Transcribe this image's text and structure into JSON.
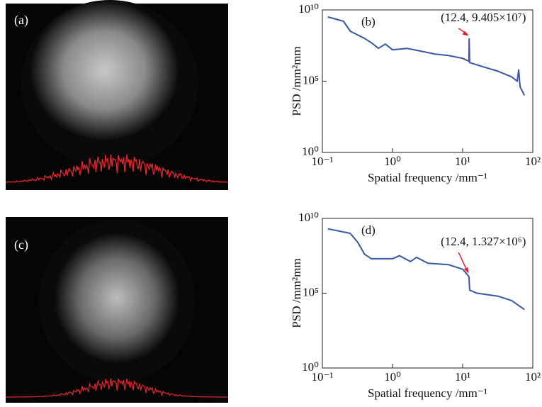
{
  "images": [
    {
      "label": "(a)"
    },
    {
      "label": "(c)"
    }
  ],
  "chart_data": [
    {
      "type": "line",
      "label": "(b)",
      "log_x": true,
      "log_y": true,
      "x_label": "Spatial frequency /mm⁻¹",
      "y_label": "PSD /mm²mm",
      "xlim": [
        0.1,
        100
      ],
      "ylim": [
        1,
        10000000000.0
      ],
      "xticks": [
        {
          "value": 0.1,
          "label": "10⁻¹"
        },
        {
          "value": 1,
          "label": "10⁰"
        },
        {
          "value": 10,
          "label": "10¹"
        },
        {
          "value": 100,
          "label": "10²"
        }
      ],
      "yticks": [
        {
          "value": 1,
          "label": "10⁰"
        },
        {
          "value": 100000,
          "label": "10⁵"
        },
        {
          "value": 10000000000,
          "label": "10¹⁰"
        }
      ],
      "color": "#3557a6",
      "x": [
        0.12,
        0.2,
        0.25,
        0.4,
        0.5,
        0.63,
        0.79,
        1,
        1.6,
        2.5,
        4,
        6.3,
        10,
        12.3,
        12.4,
        12.6,
        20,
        32,
        50,
        60,
        63,
        66,
        76
      ],
      "values": [
        3200000000.0,
        1600000000.0,
        320000000.0,
        100000000.0,
        50000000.0,
        20000000.0,
        40000000.0,
        16000000.0,
        20000000.0,
        13000000.0,
        8000000.0,
        6300000.0,
        4000000.0,
        2500000.0,
        94050000.0,
        2000000.0,
        1000000.0,
        500000.0,
        200000.0,
        100000.0,
        630000.0,
        40000.0,
        10000.0
      ],
      "annotation": {
        "text": "(12.4, 9.405×10⁷)",
        "x": 12.4,
        "y": 94050000.0,
        "color": "#e8202a"
      }
    },
    {
      "type": "line",
      "label": "(d)",
      "log_x": true,
      "log_y": true,
      "x_label": "Spatial frequency /mm⁻¹",
      "y_label": "PSD /mm²mm",
      "xlim": [
        0.1,
        100
      ],
      "ylim": [
        1,
        10000000000.0
      ],
      "xticks": [
        {
          "value": 0.1,
          "label": "10⁻¹"
        },
        {
          "value": 1,
          "label": "10⁰"
        },
        {
          "value": 10,
          "label": "10¹"
        },
        {
          "value": 100,
          "label": "10²"
        }
      ],
      "yticks": [
        {
          "value": 1,
          "label": "10⁰"
        },
        {
          "value": 100000,
          "label": "10⁵"
        },
        {
          "value": 10000000000,
          "label": "10¹⁰"
        }
      ],
      "color": "#3557a6",
      "x": [
        0.12,
        0.25,
        0.32,
        0.4,
        0.5,
        1,
        1.26,
        1.8,
        2.2,
        3.2,
        6.3,
        10,
        12.3,
        12.6,
        16,
        32,
        50,
        76
      ],
      "values": [
        2000000000.0,
        1000000000.0,
        250000000.0,
        40000000.0,
        20000000.0,
        20000000.0,
        32000000.0,
        13000000.0,
        25000000.0,
        10000000.0,
        8000000.0,
        4000000.0,
        1300000.0,
        160000.0,
        100000.0,
        63000.0,
        32000.0,
        8000.0
      ],
      "annotation": {
        "text": "(12.4, 1.327×10⁶)",
        "x": 12.4,
        "y": 1327000.0,
        "color": "#e8202a"
      }
    }
  ]
}
